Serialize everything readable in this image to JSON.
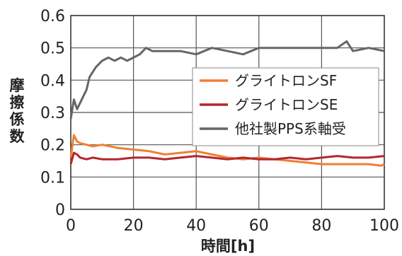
{
  "chart_data": {
    "type": "line",
    "xlabel": "時間[h]",
    "ylabel": "摩擦係数",
    "xlim": [
      0,
      100
    ],
    "ylim": [
      0,
      0.6
    ],
    "x_ticks": [
      0,
      20,
      40,
      60,
      80,
      100
    ],
    "y_ticks": [
      0,
      0.1,
      0.2,
      0.3,
      0.4,
      0.5,
      0.6
    ],
    "x_tick_labels": [
      "0",
      "20",
      "40",
      "60",
      "80",
      "100"
    ],
    "y_tick_labels": [
      "0",
      "0.1",
      "0.2",
      "0.3",
      "0.4",
      "0.5",
      "0.6"
    ],
    "grid": true,
    "legend_position": "middle-right",
    "series": [
      {
        "name": "グライトロンSF",
        "color": "#f07f34",
        "x": [
          0,
          1,
          2,
          3,
          5,
          7,
          10,
          15,
          20,
          25,
          30,
          35,
          40,
          45,
          50,
          55,
          60,
          65,
          70,
          75,
          80,
          85,
          90,
          95,
          99,
          100
        ],
        "y": [
          0.16,
          0.23,
          0.21,
          0.205,
          0.2,
          0.195,
          0.2,
          0.19,
          0.185,
          0.18,
          0.17,
          0.175,
          0.18,
          0.17,
          0.16,
          0.155,
          0.16,
          0.155,
          0.15,
          0.145,
          0.14,
          0.14,
          0.14,
          0.14,
          0.135,
          0.14
        ]
      },
      {
        "name": "グライトロンSE",
        "color": "#b5262c",
        "x": [
          0,
          1,
          2,
          3,
          5,
          7,
          10,
          15,
          20,
          25,
          30,
          35,
          40,
          45,
          50,
          55,
          60,
          65,
          70,
          75,
          80,
          85,
          90,
          95,
          100
        ],
        "y": [
          0.14,
          0.175,
          0.17,
          0.16,
          0.155,
          0.16,
          0.155,
          0.155,
          0.16,
          0.16,
          0.155,
          0.16,
          0.165,
          0.16,
          0.155,
          0.16,
          0.155,
          0.155,
          0.16,
          0.155,
          0.16,
          0.165,
          0.16,
          0.16,
          0.165
        ]
      },
      {
        "name": "他社製PPS系軸受",
        "color": "#666666",
        "x": [
          0,
          1,
          2,
          3,
          4,
          5,
          6,
          8,
          10,
          12,
          14,
          16,
          18,
          20,
          22,
          24,
          26,
          30,
          35,
          40,
          45,
          50,
          55,
          60,
          65,
          70,
          75,
          80,
          85,
          88,
          90,
          95,
          100
        ],
        "y": [
          0.28,
          0.34,
          0.31,
          0.33,
          0.35,
          0.37,
          0.41,
          0.44,
          0.46,
          0.47,
          0.46,
          0.47,
          0.46,
          0.47,
          0.48,
          0.5,
          0.49,
          0.49,
          0.49,
          0.48,
          0.5,
          0.49,
          0.48,
          0.5,
          0.5,
          0.5,
          0.5,
          0.5,
          0.5,
          0.52,
          0.49,
          0.5,
          0.49
        ]
      }
    ]
  }
}
